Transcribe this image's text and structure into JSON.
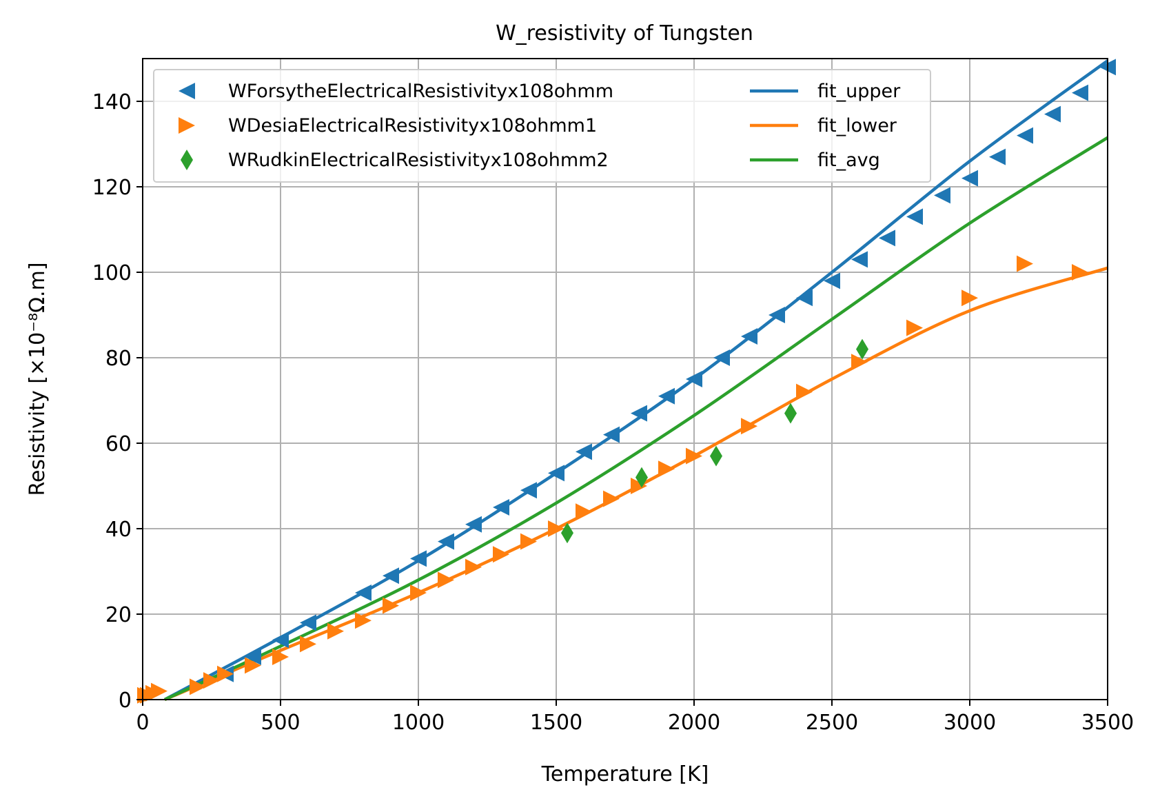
{
  "chart_data": {
    "type": "scatter",
    "title": "W_resistivity of Tungsten",
    "xlabel": "Temperature [K]",
    "ylabel": "Resistivity [×10⁻⁸Ω.m]",
    "xlim": [
      0,
      3500
    ],
    "ylim": [
      0,
      150
    ],
    "xticks": [
      0,
      500,
      1000,
      1500,
      2000,
      2500,
      3000,
      3500
    ],
    "yticks": [
      0,
      20,
      40,
      60,
      80,
      100,
      120,
      140
    ],
    "grid": true,
    "legend_position": "top-left",
    "series": [
      {
        "name": "WForsytheElectricalResistivityx108ohmm",
        "kind": "scatter",
        "marker": "triangle-left",
        "color": "#1f77b4",
        "x": [
          300,
          400,
          500,
          600,
          800,
          900,
          1000,
          1100,
          1200,
          1300,
          1400,
          1500,
          1600,
          1700,
          1800,
          1900,
          2000,
          2100,
          2200,
          2300,
          2400,
          2500,
          2600,
          2700,
          2800,
          2900,
          3000,
          3100,
          3200,
          3300,
          3400,
          3500
        ],
        "y": [
          6,
          10,
          14,
          18,
          25,
          29,
          33,
          37,
          41,
          45,
          49,
          53,
          58,
          62,
          67,
          71,
          75,
          80,
          85,
          90,
          94,
          98,
          103,
          108,
          113,
          118,
          122,
          127,
          132,
          137,
          142,
          148
        ]
      },
      {
        "name": "WDesiaElectricalResistivityx108ohmm1",
        "kind": "scatter",
        "marker": "triangle-right",
        "color": "#ff7f0e",
        "x": [
          10,
          20,
          40,
          60,
          200,
          250,
          300,
          400,
          500,
          600,
          700,
          800,
          900,
          1000,
          1100,
          1200,
          1300,
          1400,
          1500,
          1600,
          1700,
          1800,
          1900,
          2000,
          2200,
          2400,
          2600,
          2800,
          3000,
          3200,
          3400
        ],
        "y": [
          1,
          1,
          1.5,
          2,
          3,
          4.5,
          6,
          8,
          10,
          13,
          16,
          18.5,
          22,
          25,
          28,
          31,
          34,
          37,
          40,
          44,
          47,
          50,
          54,
          57,
          64,
          72,
          79,
          87,
          94,
          102,
          100
        ]
      },
      {
        "name": "WRudkinElectricalResistivityx108ohmm2",
        "kind": "scatter",
        "marker": "thin-diamond",
        "color": "#2ca02c",
        "x": [
          1540,
          1810,
          2080,
          2350,
          2610
        ],
        "y": [
          39,
          52,
          57,
          67,
          82
        ]
      },
      {
        "name": "fit_upper",
        "kind": "line",
        "color": "#1f77b4",
        "x": [
          80,
          500,
          1000,
          1500,
          2000,
          2500,
          3000,
          3500
        ],
        "y": [
          0,
          14.5,
          32.5,
          53,
          75,
          100,
          126,
          149.5
        ]
      },
      {
        "name": "fit_lower",
        "kind": "line",
        "color": "#ff7f0e",
        "x": [
          80,
          500,
          1000,
          1500,
          2000,
          2500,
          3000,
          3500
        ],
        "y": [
          0,
          11.5,
          25,
          40,
          57,
          75,
          91,
          101
        ]
      },
      {
        "name": "fit_avg",
        "kind": "line",
        "color": "#2ca02c",
        "x": [
          80,
          500,
          1000,
          1500,
          2000,
          2500,
          3000,
          3500
        ],
        "y": [
          0,
          12.5,
          28,
          46,
          66.5,
          89,
          111.5,
          131.5
        ]
      }
    ]
  }
}
